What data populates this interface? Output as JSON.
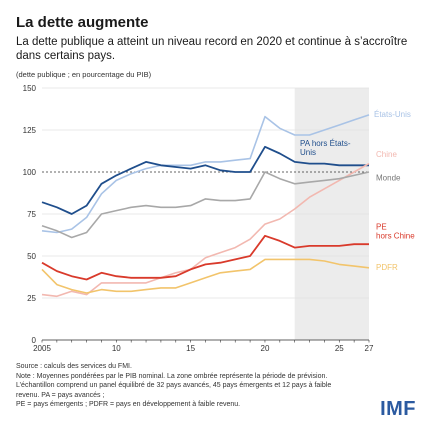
{
  "header": {
    "title": "La dette augmente",
    "subtitle": "La dette publique a atteint un niveau record en 2020 et continue à s’accroître dans certains pays.",
    "unit_note": "(dette publique ; en pourcentage du PIB)"
  },
  "footnotes": {
    "source": "Source : calculs des services du FMI.",
    "note": "Note : Moyennes pondérées par le PIB nominal. La zone ombrée représente la période de prévision. L’échantillon comprend un panel équilibré de 32 pays avancés, 45 pays émergents et 12 pays à faible revenu. PA = pays avancés ;",
    "abbrev": "PE = pays émergents ; PDFR = pays en développement à faible revenu."
  },
  "logo": "IMF",
  "chart_data": {
    "type": "line",
    "x": [
      2005,
      2006,
      2007,
      2008,
      2009,
      2010,
      2011,
      2012,
      2013,
      2014,
      2015,
      2016,
      2017,
      2018,
      2019,
      2020,
      2021,
      2022,
      2023,
      2024,
      2025,
      2026,
      2027
    ],
    "xticks": [
      2005,
      2010,
      2015,
      2020,
      2025,
      2027
    ],
    "xtick_labels": [
      "2005",
      "10",
      "15",
      "20",
      "25",
      "27"
    ],
    "ylim": [
      0,
      150
    ],
    "yticks": [
      0,
      25,
      50,
      75,
      100,
      125,
      150
    ],
    "forecast_start": 2022,
    "reference_line": 100,
    "series": [
      {
        "name": "États-Unis",
        "color": "#a9c3e6",
        "values": [
          65,
          64,
          66,
          73,
          87,
          95,
          99,
          102,
          104,
          104,
          104,
          106,
          106,
          107,
          108,
          133,
          126,
          122,
          122,
          125,
          128,
          131,
          134
        ]
      },
      {
        "name": "PA hors États-Unis",
        "color": "#1f4e8c",
        "values": [
          82,
          79,
          75,
          80,
          93,
          98,
          102,
          106,
          104,
          103,
          102,
          104,
          101,
          100,
          100,
          115,
          111,
          106,
          105,
          105,
          104,
          104,
          104
        ]
      },
      {
        "name": "Chine",
        "color": "#f2b8b0",
        "values": [
          27,
          26,
          29,
          27,
          34,
          34,
          34,
          34,
          37,
          40,
          42,
          49,
          52,
          55,
          60,
          69,
          72,
          78,
          85,
          90,
          95,
          100,
          105
        ]
      },
      {
        "name": "Monde",
        "color": "#a8a8a8",
        "values": [
          68,
          65,
          61,
          64,
          75,
          77,
          79,
          80,
          79,
          79,
          80,
          84,
          83,
          83,
          84,
          100,
          96,
          93,
          94,
          95,
          96,
          98,
          100
        ]
      },
      {
        "name": "PE hors Chine",
        "color": "#d93a2b",
        "values": [
          46,
          41,
          38,
          36,
          40,
          38,
          37,
          37,
          37,
          38,
          42,
          45,
          46,
          48,
          50,
          62,
          59,
          55,
          56,
          56,
          56,
          57,
          57
        ]
      },
      {
        "name": "PDFR",
        "color": "#f2c46b",
        "values": [
          42,
          33,
          30,
          28,
          30,
          29,
          29,
          30,
          31,
          31,
          34,
          37,
          40,
          41,
          42,
          48,
          48,
          48,
          48,
          47,
          45,
          44,
          43
        ]
      }
    ],
    "legend_labels": [
      {
        "text": "États-Unis",
        "color": "#a9c3e6"
      },
      {
        "text": "PA hors États-",
        "text2": "Unis",
        "color": "#1f4e8c"
      },
      {
        "text": "Chine",
        "color": "#f2b8b0"
      },
      {
        "text": "Monde",
        "color": "#777777"
      },
      {
        "text": "PE",
        "text2": "hors Chine",
        "color": "#d93a2b"
      },
      {
        "text": "PDFR",
        "color": "#f2c46b"
      }
    ]
  }
}
